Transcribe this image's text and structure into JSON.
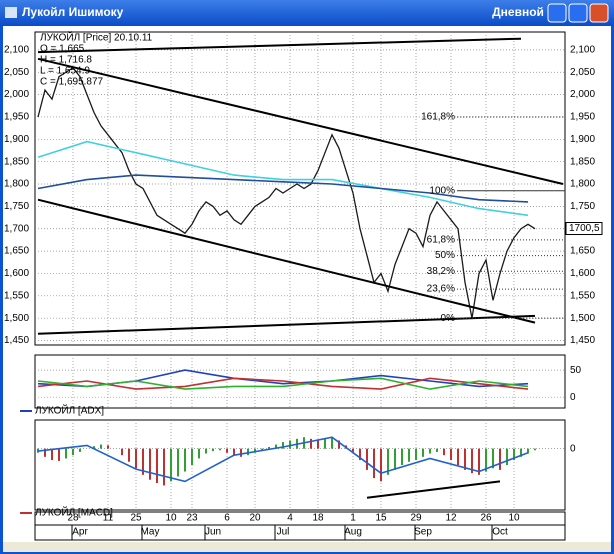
{
  "window": {
    "title": "Лукойл Ишимоку",
    "mode": "Дневной"
  },
  "chart_data": [
    {
      "type": "line",
      "title": "ЛУКОЙЛ [Price] 20.10.11",
      "ohlc_labels": [
        "O = 1,665",
        "H = 1,716.8",
        "L = 1,654.9",
        "C = 1,695.877"
      ],
      "ylim": [
        1440,
        2140
      ],
      "yticks": [
        {
          "value": 1450,
          "label": "1,450"
        },
        {
          "value": 1500,
          "label": "1,500"
        },
        {
          "value": 1550,
          "label": "1,550"
        },
        {
          "value": 1600,
          "label": "1,600"
        },
        {
          "value": 1650,
          "label": "1,650"
        },
        {
          "value": 1700,
          "label": "1,700"
        },
        {
          "value": 1750,
          "label": "1,750"
        },
        {
          "value": 1800,
          "label": "1,800"
        },
        {
          "value": 1850,
          "label": "1,850"
        },
        {
          "value": 1900,
          "label": "1,900"
        },
        {
          "value": 1950,
          "label": "1,950"
        },
        {
          "value": 2000,
          "label": "2,000"
        },
        {
          "value": 2050,
          "label": "2,050"
        },
        {
          "value": 2100,
          "label": "2,100"
        }
      ],
      "xticks": [
        {
          "value": 5,
          "label": "28"
        },
        {
          "value": 10,
          "label": "11"
        },
        {
          "value": 14,
          "label": "25"
        },
        {
          "value": 19,
          "label": "10"
        },
        {
          "value": 22,
          "label": "23"
        },
        {
          "value": 27,
          "label": "6"
        },
        {
          "value": 31,
          "label": "20"
        },
        {
          "value": 36,
          "label": "4"
        },
        {
          "value": 40,
          "label": "18"
        },
        {
          "value": 45,
          "label": "1"
        },
        {
          "value": 49,
          "label": "15"
        },
        {
          "value": 54,
          "label": "29"
        },
        {
          "value": 59,
          "label": "12"
        },
        {
          "value": 64,
          "label": "26"
        },
        {
          "value": 68,
          "label": "10"
        }
      ],
      "month_ticks": [
        {
          "value": 6,
          "label": "Apr"
        },
        {
          "value": 16,
          "label": "May"
        },
        {
          "value": 25,
          "label": "Jun"
        },
        {
          "value": 35,
          "label": "Jul"
        },
        {
          "value": 45,
          "label": "Aug"
        },
        {
          "value": 55,
          "label": "Sep"
        },
        {
          "value": 66,
          "label": "Oct"
        }
      ],
      "series": [
        {
          "type": "line",
          "color": "#1a1a1a",
          "values": [
            1950,
            2010,
            1990,
            2040,
            2050,
            2060,
            2040,
            2000,
            1960,
            1930,
            1910,
            1890,
            1870,
            1830,
            1800,
            1790,
            1760,
            1730,
            1720,
            1710,
            1700,
            1690,
            1710,
            1740,
            1760,
            1750,
            1730,
            1740,
            1720,
            1710,
            1730,
            1750,
            1760,
            1770,
            1790,
            1780,
            1790,
            1800,
            1790,
            1800,
            1830,
            1870,
            1910,
            1880,
            1830,
            1780,
            1700,
            1640,
            1580,
            1600,
            1560,
            1620,
            1660,
            1700,
            1690,
            1660,
            1730,
            1760,
            1740,
            1720,
            1700,
            1580,
            1500,
            1600,
            1630,
            1540,
            1600,
            1650,
            1680,
            1700,
            1710,
            1700
          ]
        },
        {
          "type": "line",
          "color": "#40d0e0",
          "x": [
            0,
            7,
            14,
            21,
            28,
            35,
            42,
            49,
            56,
            63,
            70
          ],
          "values": [
            1860,
            1895,
            1870,
            1845,
            1820,
            1810,
            1810,
            1790,
            1770,
            1745,
            1730
          ]
        },
        {
          "type": "line",
          "color": "#1f4e9a",
          "x": [
            0,
            7,
            14,
            21,
            28,
            35,
            42,
            49,
            56,
            63,
            70
          ],
          "values": [
            1790,
            1810,
            1820,
            1815,
            1810,
            1805,
            1800,
            1790,
            1780,
            1765,
            1760
          ]
        }
      ],
      "trendlines": [
        {
          "x": [
            0,
            69
          ],
          "values": [
            2095,
            2125
          ]
        },
        {
          "x": [
            0,
            75
          ],
          "values": [
            2080,
            1800
          ]
        },
        {
          "x": [
            0,
            71
          ],
          "values": [
            1765,
            1490
          ]
        },
        {
          "x": [
            0,
            71
          ],
          "values": [
            1465,
            1505
          ]
        }
      ],
      "fib_levels": [
        {
          "value": 1950,
          "label": "161,8%"
        },
        {
          "value": 1785,
          "label": "100%"
        },
        {
          "value": 1675,
          "label": "61,8%"
        },
        {
          "value": 1640,
          "label": "50%"
        },
        {
          "value": 1605,
          "label": "38,2%"
        },
        {
          "value": 1565,
          "label": "23,6%"
        },
        {
          "value": 1500,
          "label": "0%"
        }
      ],
      "last_price": {
        "value": 1700.5,
        "label": "1700,5"
      }
    },
    {
      "type": "line",
      "title": "ЛУКОЙЛ [ADX]",
      "ylim": [
        -20,
        78
      ],
      "yticks": [
        0,
        50
      ],
      "series": [
        {
          "type": "line",
          "color": "#2040c0",
          "x": [
            0,
            7,
            14,
            21,
            28,
            35,
            42,
            49,
            56,
            63,
            70
          ],
          "values": [
            25,
            20,
            30,
            50,
            35,
            25,
            30,
            40,
            30,
            20,
            25
          ]
        },
        {
          "type": "line",
          "color": "#c03030",
          "x": [
            0,
            7,
            14,
            21,
            28,
            35,
            42,
            49,
            56,
            63,
            70
          ],
          "values": [
            20,
            30,
            15,
            20,
            35,
            30,
            20,
            15,
            35,
            25,
            15
          ]
        },
        {
          "type": "line",
          "color": "#30b030",
          "x": [
            0,
            7,
            14,
            21,
            28,
            35,
            42,
            49,
            56,
            63,
            70
          ],
          "values": [
            30,
            20,
            30,
            15,
            20,
            20,
            30,
            35,
            15,
            30,
            20
          ]
        }
      ]
    },
    {
      "type": "bar",
      "title": "ЛУКОЙЛ [MACD]",
      "ylim": [
        -75,
        35
      ],
      "yticks": [
        0
      ],
      "colors": [
        "#30a030",
        "#c03030"
      ],
      "series": [
        {
          "type": "bar",
          "values": [
            -5,
            -10,
            -14,
            -15,
            -12,
            -8,
            -4,
            0,
            3,
            5,
            4,
            0,
            -8,
            -16,
            -24,
            -32,
            -38,
            -42,
            -45,
            -40,
            -34,
            -28,
            -20,
            -12,
            -6,
            -3,
            -2,
            -5,
            -8,
            -10,
            -8,
            -5,
            -2,
            2,
            5,
            8,
            10,
            12,
            14,
            12,
            10,
            12,
            14,
            10,
            4,
            -4,
            -14,
            -26,
            -36,
            -40,
            -32,
            -26,
            -20,
            -16,
            -14,
            -10,
            -6,
            -4,
            -8,
            -14,
            -20,
            -26,
            -30,
            -32,
            -28,
            -24,
            -26,
            -20,
            -14,
            -10,
            -6,
            -2
          ]
        },
        {
          "type": "line",
          "color": "#2060d0",
          "x": [
            0,
            7,
            14,
            21,
            28,
            35,
            42,
            49,
            56,
            63,
            70
          ],
          "values": [
            -3,
            4,
            -25,
            -40,
            -8,
            2,
            14,
            -30,
            -12,
            -28,
            -5
          ]
        }
      ],
      "trendlines": [
        {
          "x": [
            47,
            66
          ],
          "values": [
            -60,
            -40
          ]
        }
      ]
    }
  ]
}
